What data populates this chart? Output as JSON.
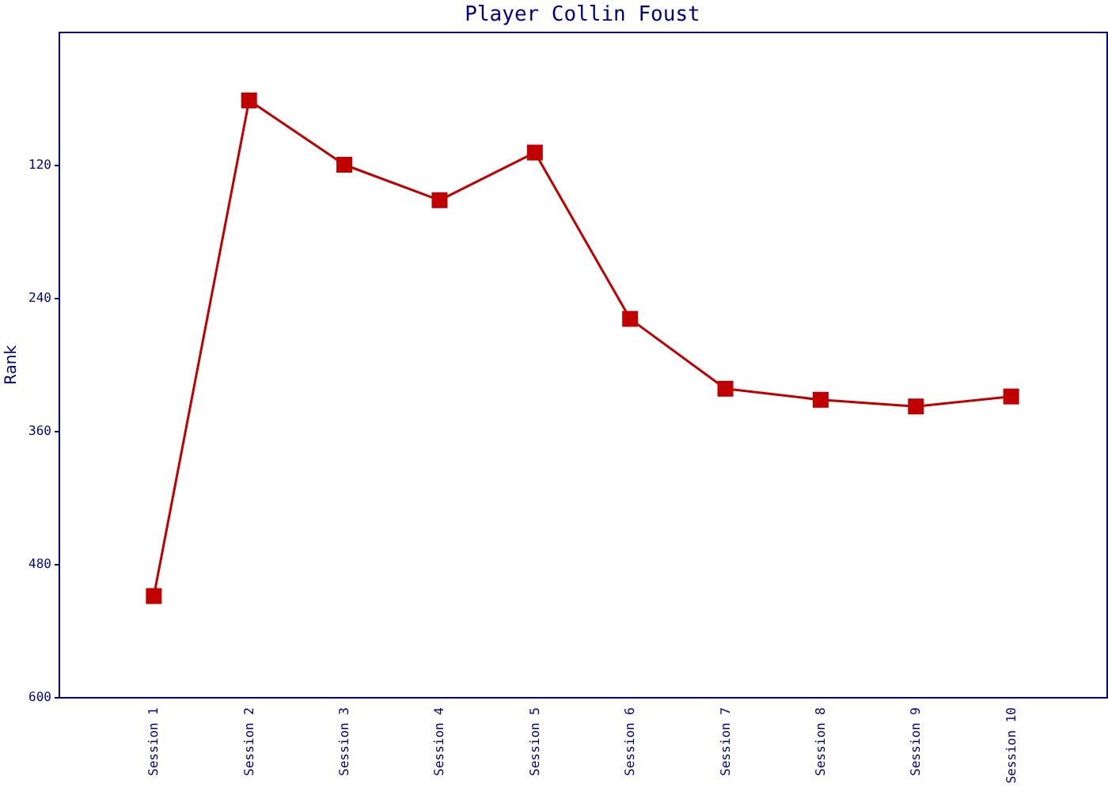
{
  "chart_data": {
    "type": "line",
    "title": "Player Collin Foust",
    "ylabel": "Rank",
    "categories": [
      "Session 1",
      "Session 2",
      "Session 3",
      "Session 4",
      "Session 5",
      "Session 6",
      "Session 7",
      "Session 8",
      "Session 9",
      "Session 10"
    ],
    "series": [
      {
        "color": "#c00000",
        "values": [
          509,
          62,
          120,
          152,
          109,
          259,
          322,
          332,
          338,
          329
        ]
      }
    ],
    "ylim": [
      600,
      0
    ],
    "yticks": [
      120,
      240,
      360,
      480,
      600
    ],
    "marker": "square",
    "line_style": "solid",
    "grid": false
  }
}
